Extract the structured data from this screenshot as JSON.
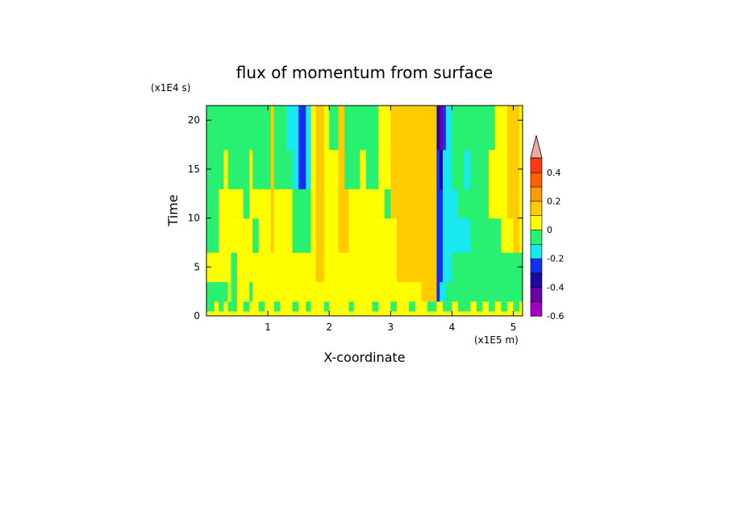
{
  "chart_data": {
    "type": "heatmap",
    "title": "flux of momentum from surface",
    "xlabel": "X-coordinate",
    "ylabel": "Time",
    "x_unit": "(x1E5 m)",
    "y_unit": "(x1E4 s)",
    "xlim": [
      0,
      5.15
    ],
    "ylim": [
      0,
      21.5
    ],
    "x_ticks": [
      "1",
      "2",
      "3",
      "4",
      "5"
    ],
    "y_ticks": [
      "0",
      "5",
      "10",
      "15",
      "20"
    ],
    "grid": false,
    "legend": "right colorbar",
    "colorbar": {
      "levels": [
        -0.6,
        -0.5,
        -0.4,
        -0.3,
        -0.2,
        -0.1,
        0,
        0.1,
        0.2,
        0.3,
        0.4,
        0.5
      ],
      "tick_labels": [
        "-0.6",
        "-0.4",
        "-0.2",
        "0",
        "0.2",
        "0.4"
      ],
      "tick_values": [
        -0.6,
        -0.4,
        -0.2,
        0,
        0.2,
        0.4
      ],
      "colors": [
        "#a000c0",
        "#6a00a8",
        "#1c0aa0",
        "#1030f0",
        "#18e8f0",
        "#28f070",
        "#ffff00",
        "#ffcc00",
        "#ff9c00",
        "#ff6000",
        "#ff3a10"
      ],
      "overflow_color": "#f0a8a0",
      "extend": "max"
    },
    "x_breaks": [
      0,
      0.05,
      0.13,
      0.2,
      0.28,
      0.35,
      0.4,
      0.5,
      0.6,
      0.7,
      0.75,
      0.85,
      0.95,
      1.05,
      1.1,
      1.2,
      1.3,
      1.4,
      1.5,
      1.55,
      1.62,
      1.7,
      1.78,
      1.85,
      1.92,
      2.0,
      2.08,
      2.15,
      2.25,
      2.32,
      2.4,
      2.5,
      2.6,
      2.7,
      2.8,
      2.9,
      3.0,
      3.1,
      3.2,
      3.3,
      3.4,
      3.5,
      3.6,
      3.7,
      3.75,
      3.8,
      3.85,
      3.9,
      4.0,
      4.1,
      4.2,
      4.3,
      4.4,
      4.5,
      4.6,
      4.7,
      4.8,
      4.9,
      5.0,
      5.1,
      5.15
    ],
    "y_breaks": [
      0,
      0.5,
      1.5,
      3.5,
      6.5,
      10,
      13,
      17,
      21.5
    ],
    "values": [
      [
        0.05,
        0.05,
        0.05,
        0.05,
        0.05,
        0.05,
        0.05,
        0.05,
        0.05,
        0.05,
        0.05,
        0.05,
        0.05,
        0.05,
        0.05,
        0.05,
        0.05,
        0.05,
        0.05,
        0.05,
        0.05,
        0.05,
        0.05,
        0.05,
        0.05,
        0.05,
        0.05,
        0.05,
        0.05,
        0.05,
        0.05,
        0.05,
        0.05,
        0.05,
        0.05,
        0.05,
        0.05,
        0.05,
        0.05,
        0.05,
        0.05,
        0.05,
        0.05,
        0.05,
        0.05,
        0.05,
        0.05,
        0.05,
        0.05,
        0.05,
        0.05,
        0.05,
        0.05,
        0.05,
        0.05,
        0.05,
        0.05,
        0.05,
        0.05,
        0.05
      ],
      [
        -0.05,
        -0.05,
        0.05,
        -0.05,
        0.05,
        -0.05,
        -0.05,
        0.05,
        -0.05,
        0.05,
        0.05,
        -0.05,
        0.05,
        0.05,
        -0.05,
        0.05,
        0.05,
        -0.05,
        0.05,
        0.05,
        -0.05,
        0.05,
        0.05,
        0.05,
        -0.05,
        0.05,
        0.05,
        0.05,
        0.05,
        -0.05,
        0.05,
        0.05,
        0.05,
        -0.05,
        0.05,
        0.05,
        -0.05,
        0.05,
        0.05,
        -0.05,
        0.05,
        0.05,
        -0.05,
        -0.05,
        0.05,
        0.05,
        -0.05,
        -0.05,
        0.05,
        -0.05,
        -0.05,
        0.05,
        -0.05,
        0.05,
        -0.05,
        0.05,
        -0.05,
        0.05,
        -0.05,
        0.05
      ],
      [
        -0.05,
        -0.05,
        -0.05,
        -0.05,
        -0.05,
        0.05,
        -0.05,
        0.05,
        0.05,
        -0.05,
        0.05,
        0.05,
        0.05,
        0.05,
        0.05,
        0.05,
        0.05,
        0.05,
        0.05,
        0.05,
        0.05,
        0.05,
        0.05,
        0.05,
        0.05,
        0.05,
        0.05,
        0.05,
        0.05,
        0.05,
        0.05,
        0.05,
        0.05,
        0.05,
        0.05,
        0.05,
        0.05,
        0.05,
        0.05,
        0.05,
        0.05,
        0.15,
        0.15,
        0.15,
        -0.25,
        -0.15,
        -0.15,
        -0.05,
        -0.05,
        -0.05,
        -0.05,
        -0.05,
        -0.05,
        -0.05,
        -0.05,
        -0.05,
        -0.05,
        -0.05,
        -0.05,
        -0.05
      ],
      [
        0.05,
        0.05,
        0.05,
        0.05,
        0.05,
        0.05,
        -0.05,
        0.05,
        0.05,
        0.05,
        0.05,
        0.05,
        0.05,
        0.05,
        0.05,
        0.05,
        0.05,
        0.05,
        0.05,
        0.05,
        0.05,
        0.05,
        0.15,
        0.15,
        0.05,
        0.05,
        0.05,
        0.05,
        0.05,
        0.05,
        0.05,
        0.05,
        0.05,
        0.05,
        0.05,
        0.05,
        0.05,
        0.15,
        0.15,
        0.15,
        0.15,
        0.15,
        0.15,
        0.15,
        -0.25,
        -0.25,
        -0.15,
        -0.15,
        -0.05,
        -0.05,
        -0.05,
        -0.05,
        -0.05,
        -0.05,
        -0.05,
        -0.05,
        -0.05,
        -0.05,
        -0.05,
        -0.05
      ],
      [
        -0.05,
        -0.05,
        -0.05,
        0.05,
        0.05,
        0.05,
        0.05,
        0.05,
        0.05,
        0.05,
        -0.05,
        0.05,
        0.05,
        0.15,
        0.05,
        0.05,
        0.05,
        -0.05,
        -0.05,
        -0.05,
        -0.05,
        0.05,
        0.15,
        0.15,
        0.05,
        0.05,
        0.05,
        0.15,
        0.15,
        0.05,
        0.05,
        0.05,
        0.05,
        0.05,
        0.05,
        0.05,
        0.05,
        0.15,
        0.15,
        0.15,
        0.15,
        0.15,
        0.15,
        0.15,
        -0.25,
        -0.25,
        -0.15,
        -0.15,
        -0.15,
        -0.15,
        -0.15,
        -0.05,
        -0.05,
        -0.05,
        -0.05,
        -0.05,
        0.05,
        0.05,
        0.15,
        0.05
      ],
      [
        -0.05,
        -0.05,
        -0.05,
        0.05,
        0.05,
        0.05,
        0.05,
        0.05,
        -0.05,
        0.05,
        0.05,
        0.05,
        0.05,
        0.15,
        0.05,
        0.05,
        0.05,
        -0.05,
        -0.05,
        -0.05,
        -0.05,
        0.05,
        0.15,
        0.15,
        0.05,
        0.05,
        0.05,
        0.15,
        0.15,
        0.05,
        0.05,
        0.05,
        0.05,
        0.05,
        0.05,
        -0.05,
        0.15,
        0.15,
        0.15,
        0.15,
        0.15,
        0.15,
        0.15,
        0.15,
        -0.25,
        -0.25,
        -0.15,
        -0.15,
        -0.15,
        -0.05,
        -0.05,
        -0.05,
        -0.05,
        -0.05,
        0.05,
        0.05,
        0.05,
        0.15,
        0.15,
        0.05
      ],
      [
        -0.05,
        -0.05,
        -0.05,
        -0.05,
        0.05,
        -0.05,
        -0.05,
        -0.05,
        -0.05,
        0.05,
        -0.05,
        -0.05,
        -0.05,
        0.15,
        -0.05,
        -0.05,
        -0.05,
        -0.15,
        -0.25,
        -0.25,
        -0.15,
        0.05,
        0.15,
        0.15,
        0.05,
        0.05,
        0.05,
        0.15,
        -0.05,
        -0.05,
        -0.05,
        0.05,
        -0.05,
        -0.05,
        0.05,
        0.05,
        0.15,
        0.15,
        0.15,
        0.15,
        0.15,
        0.15,
        0.15,
        0.15,
        -0.25,
        -0.35,
        -0.15,
        -0.15,
        -0.05,
        -0.05,
        -0.15,
        -0.05,
        -0.05,
        -0.05,
        0.05,
        0.05,
        0.05,
        0.15,
        0.15,
        0.05
      ],
      [
        -0.05,
        -0.05,
        -0.05,
        -0.05,
        -0.05,
        -0.05,
        -0.05,
        -0.05,
        -0.05,
        -0.05,
        -0.05,
        -0.05,
        -0.05,
        0.15,
        -0.05,
        -0.05,
        -0.15,
        -0.15,
        -0.25,
        -0.25,
        -0.15,
        0.05,
        0.15,
        0.15,
        0.05,
        -0.05,
        -0.05,
        0.15,
        -0.05,
        -0.05,
        -0.05,
        -0.05,
        -0.05,
        -0.05,
        0.05,
        0.05,
        0.15,
        0.15,
        0.15,
        0.15,
        0.15,
        0.15,
        0.15,
        0.15,
        -0.35,
        -0.45,
        -0.25,
        -0.15,
        -0.05,
        -0.05,
        -0.05,
        -0.05,
        -0.05,
        -0.05,
        -0.05,
        0.05,
        0.05,
        0.15,
        0.15,
        0.05
      ]
    ]
  }
}
